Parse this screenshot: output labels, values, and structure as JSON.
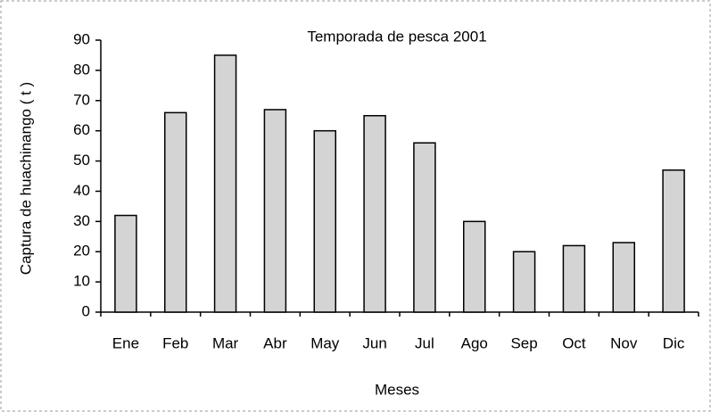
{
  "chart_data": {
    "type": "bar",
    "title": "Temporada de pesca 2001",
    "x_label": "Meses",
    "y_label": "Captura de huachinango ( t )",
    "categories": [
      "Ene",
      "Feb",
      "Mar",
      "Abr",
      "May",
      "Jun",
      "Jul",
      "Ago",
      "Sep",
      "Oct",
      "Nov",
      "Dic"
    ],
    "values": [
      32,
      66,
      85,
      67,
      60,
      65,
      56,
      30,
      20,
      22,
      23,
      47
    ],
    "color": "#d4d4d4",
    "ylim": [
      0,
      90
    ],
    "yticks": [
      0,
      10,
      20,
      30,
      40,
      50,
      60,
      70,
      80,
      90
    ],
    "grid": false
  }
}
